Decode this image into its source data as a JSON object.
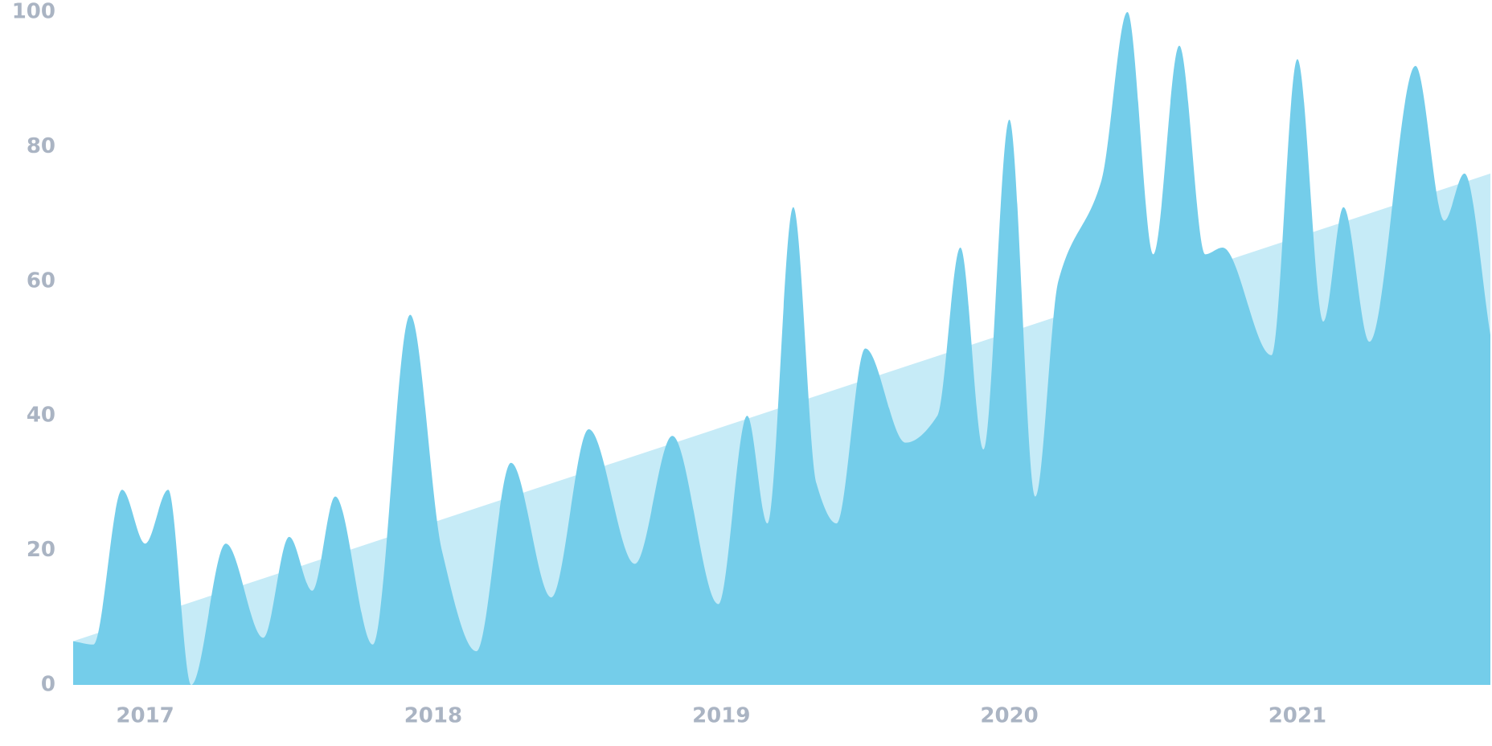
{
  "chart_data": {
    "type": "area",
    "x": [
      2016.75,
      2016.82,
      2016.92,
      2017.0,
      2017.08,
      2017.16,
      2017.28,
      2017.41,
      2017.5,
      2017.58,
      2017.66,
      2017.79,
      2017.92,
      2018.03,
      2018.15,
      2018.27,
      2018.41,
      2018.54,
      2018.7,
      2018.83,
      2018.99,
      2019.09,
      2019.16,
      2019.25,
      2019.33,
      2019.4,
      2019.5,
      2019.64,
      2019.75,
      2019.83,
      2019.91,
      2020.0,
      2020.09,
      2020.17,
      2020.32,
      2020.41,
      2020.5,
      2020.59,
      2020.68,
      2020.74,
      2020.91,
      2021.0,
      2021.09,
      2021.16,
      2021.25,
      2021.41,
      2021.51,
      2021.58,
      2021.67
    ],
    "values": [
      6.5,
      6,
      29,
      21,
      29,
      0,
      21,
      7,
      22,
      14,
      28,
      6,
      55,
      20,
      5,
      33,
      13,
      38,
      18,
      37,
      12,
      40,
      24,
      71,
      30,
      24,
      50,
      36,
      40,
      65,
      35,
      84,
      28,
      60,
      75,
      100,
      64,
      95,
      64,
      65,
      49,
      93,
      54,
      71,
      51,
      92,
      69,
      76,
      52
    ],
    "color": "#74cdea",
    "trend": {
      "x": [
        2016.75,
        2021.67
      ],
      "values": [
        6.5,
        76
      ],
      "color": "#c6ebf7"
    },
    "xlim": [
      2016.75,
      2021.67
    ],
    "xticks": [
      2017,
      2018,
      2019,
      2020,
      2021
    ],
    "ylim": [
      0,
      100
    ],
    "yticks": [
      0,
      20,
      40,
      60,
      80,
      100
    ]
  }
}
